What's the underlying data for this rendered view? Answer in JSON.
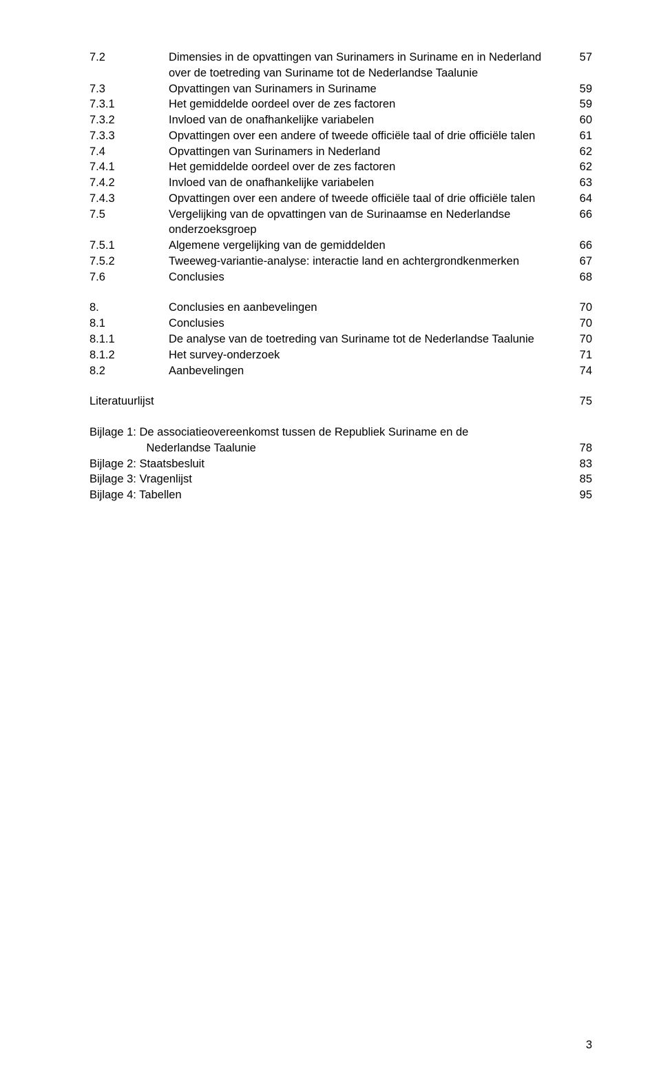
{
  "page_number": "3",
  "blocks": [
    [
      {
        "num": "7.2",
        "text": "Dimensies in de opvattingen van Surinamers in Suriname en in Nederland over de toetreding van Suriname tot de Nederlandse Taalunie",
        "page": "57"
      },
      {
        "num": "7.3",
        "text": "Opvattingen van Surinamers in Suriname",
        "page": "59"
      },
      {
        "num": "7.3.1",
        "text": "Het gemiddelde oordeel over de zes factoren",
        "page": "59"
      },
      {
        "num": "7.3.2",
        "text": "Invloed van de onafhankelijke variabelen",
        "page": "60"
      },
      {
        "num": "7.3.3",
        "text": "Opvattingen over een andere of tweede officiële taal of drie officiële talen",
        "page": "61"
      },
      {
        "num": "7.4",
        "text": "Opvattingen van Surinamers in Nederland",
        "page": "62"
      },
      {
        "num": "7.4.1",
        "text": "Het gemiddelde oordeel over de zes factoren",
        "page": "62"
      },
      {
        "num": "7.4.2",
        "text": "Invloed van de onafhankelijke variabelen",
        "page": "63"
      },
      {
        "num": "7.4.3",
        "text": "Opvattingen over een andere of tweede officiële taal of drie officiële talen",
        "page": "64"
      },
      {
        "num": "7.5",
        "text": "Vergelijking van de opvattingen van de Surinaamse en Nederlandse onderzoeksgroep",
        "page": "66"
      },
      {
        "num": "7.5.1",
        "text": "Algemene vergelijking van de gemiddelden",
        "page": "66"
      },
      {
        "num": "7.5.2",
        "text": "Tweeweg-variantie-analyse: interactie land en achtergrondkenmerken",
        "page": "67"
      },
      {
        "num": "7.6",
        "text": "Conclusies",
        "page": "68"
      }
    ],
    [
      {
        "num": "8.",
        "text": "Conclusies en aanbevelingen",
        "page": "70"
      },
      {
        "num": "8.1",
        "text": "Conclusies",
        "page": "70"
      },
      {
        "num": "8.1.1",
        "text": "De analyse van de toetreding van Suriname tot de Nederlandse Taalunie",
        "page": "70"
      },
      {
        "num": "8.1.2",
        "text": "Het survey-onderzoek",
        "page": "71"
      },
      {
        "num": "8.2",
        "text": "Aanbevelingen",
        "page": "74"
      }
    ],
    [
      {
        "num": "",
        "text": "Literatuurlijst",
        "page": "75"
      }
    ],
    [
      {
        "num": "",
        "text": "Bijlage 1: De associatieovereenkomst tussen de Republiek Suriname en de",
        "page": ""
      },
      {
        "num": "",
        "text": "                  Nederlandse Taalunie",
        "page": "78"
      },
      {
        "num": "",
        "text": "Bijlage 2: Staatsbesluit",
        "page": "83"
      },
      {
        "num": "",
        "text": "Bijlage 3: Vragenlijst",
        "page": "85"
      },
      {
        "num": "",
        "text": "Bijlage 4: Tabellen",
        "page": "95"
      }
    ]
  ]
}
